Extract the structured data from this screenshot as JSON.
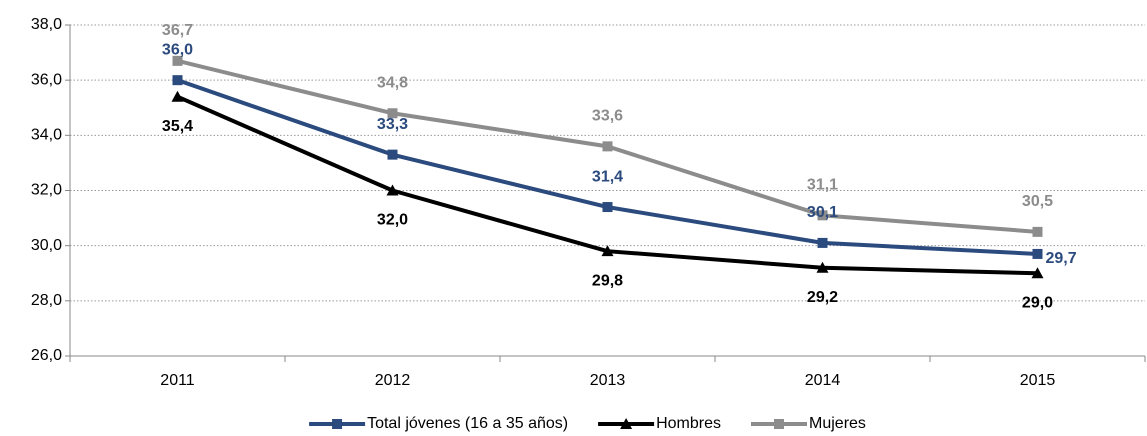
{
  "chart_data": {
    "type": "line",
    "categories": [
      "2011",
      "2012",
      "2013",
      "2014",
      "2015"
    ],
    "series": [
      {
        "name": "Total jóvenes (16 a 35 años)",
        "color": "#2b4a7e",
        "marker": "square",
        "values": [
          36.0,
          33.3,
          31.4,
          30.1,
          29.7
        ],
        "value_labels": [
          "36,0",
          "33,3",
          "31,4",
          "30,1",
          "29,7"
        ]
      },
      {
        "name": "Hombres",
        "color": "#000000",
        "marker": "triangle",
        "values": [
          35.4,
          32.0,
          29.8,
          29.2,
          29.0
        ],
        "value_labels": [
          "35,4",
          "32,0",
          "29,8",
          "29,2",
          "29,0"
        ]
      },
      {
        "name": "Mujeres",
        "color": "#8c8c8c",
        "marker": "square",
        "values": [
          36.7,
          34.8,
          33.6,
          31.1,
          30.5
        ],
        "value_labels": [
          "36,7",
          "34,8",
          "33,6",
          "31,1",
          "30,5"
        ]
      }
    ],
    "ylim": [
      26,
      38
    ],
    "yticks": [
      {
        "value": 26,
        "label": "26,0"
      },
      {
        "value": 28,
        "label": "28,0"
      },
      {
        "value": 30,
        "label": "30,0"
      },
      {
        "value": 32,
        "label": "32,0"
      },
      {
        "value": 34,
        "label": "34,0"
      },
      {
        "value": 36,
        "label": "36,0"
      },
      {
        "value": 38,
        "label": "38,0"
      }
    ],
    "grid": true,
    "legend": "bottom"
  }
}
